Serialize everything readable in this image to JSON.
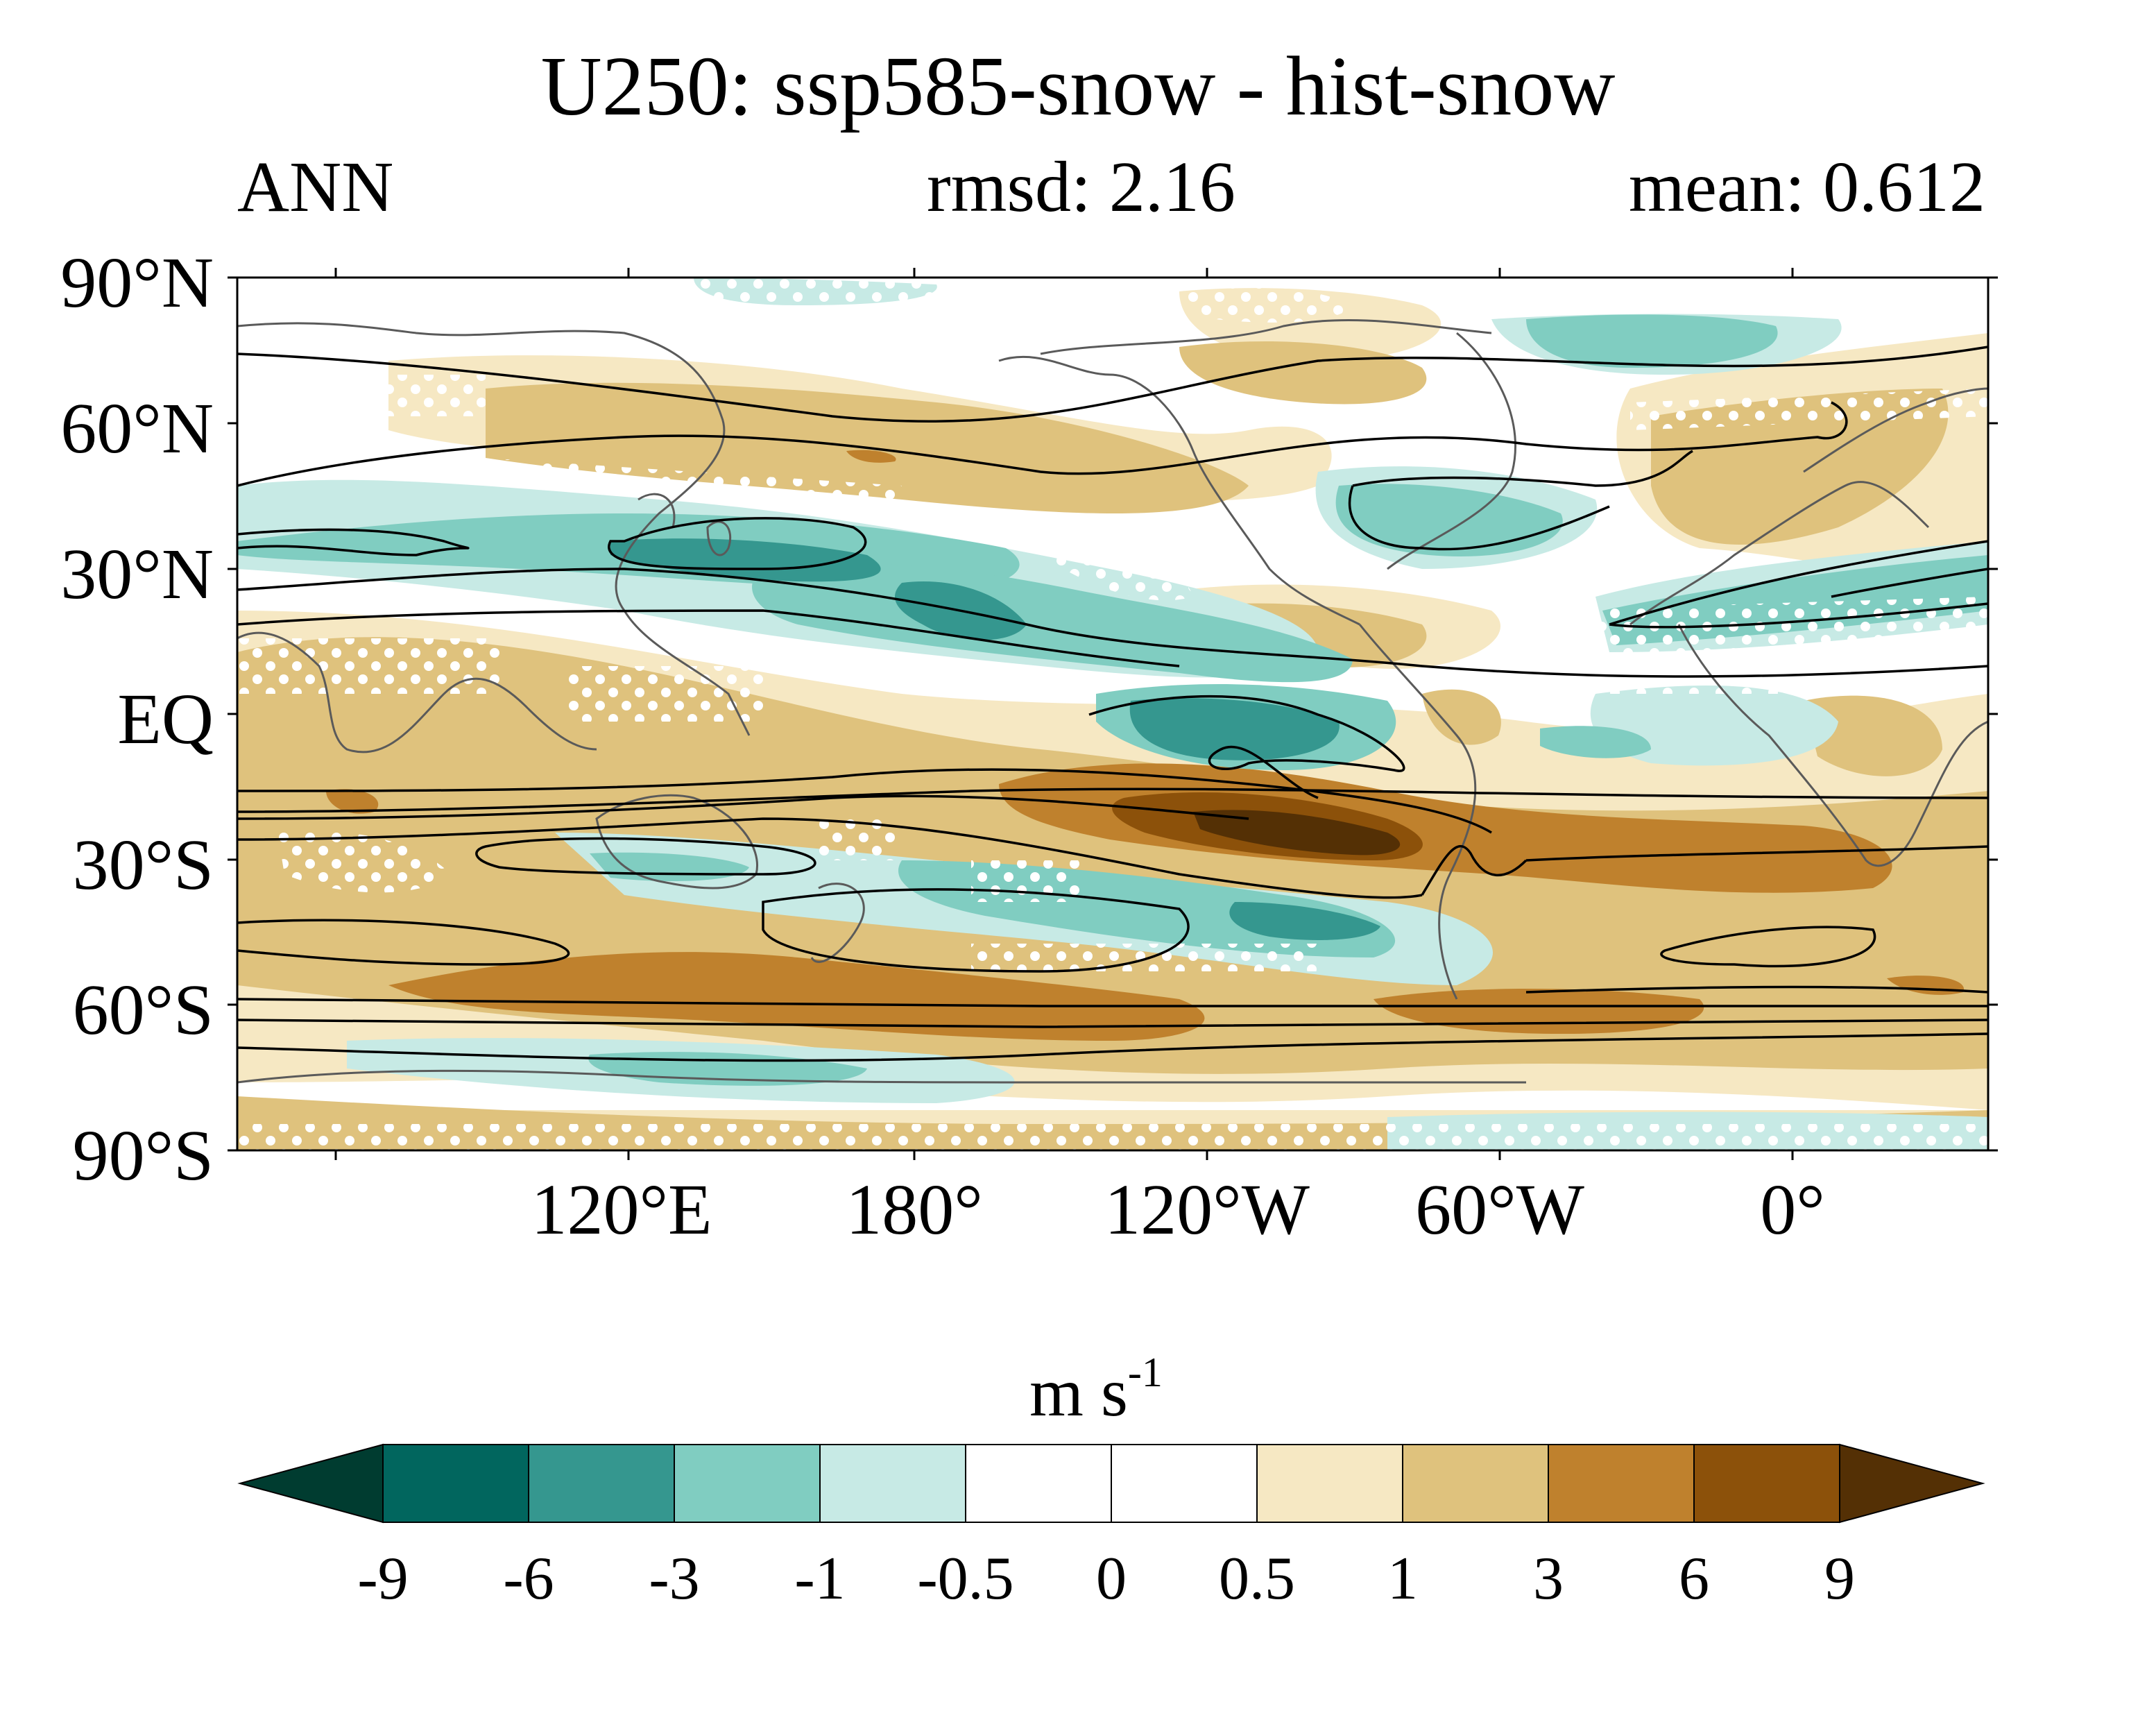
{
  "title": "U250: ssp585-snow - hist-snow",
  "season": "ANN",
  "rmsd": "rmsd: 2.16",
  "mean": "mean: 0.612",
  "lat_labels": [
    "90°N",
    "60°N",
    "30°N",
    "EQ",
    "30°S",
    "60°S",
    "90°S"
  ],
  "lon_labels": [
    "120°E",
    "180°",
    "120°W",
    "60°W",
    "0°"
  ],
  "colorbar": {
    "units_base": "m s",
    "units_exp": "-1",
    "levels": [
      "-9",
      "-6",
      "-3",
      "-1",
      "-0.5",
      "0",
      "0.5",
      "1",
      "3",
      "6",
      "9"
    ],
    "colors": [
      "#01665e",
      "#35978f",
      "#80cdc1",
      "#c7eae5",
      "#ffffff",
      "#ffffff",
      "#f6e8c3",
      "#dfc27d",
      "#bf812d",
      "#8c510a"
    ],
    "under_color": "#003c30",
    "over_color": "#543005"
  },
  "colors": {
    "coastline": "#5a5a5a",
    "contour": "#000000",
    "stipple": "#ffffff"
  }
}
